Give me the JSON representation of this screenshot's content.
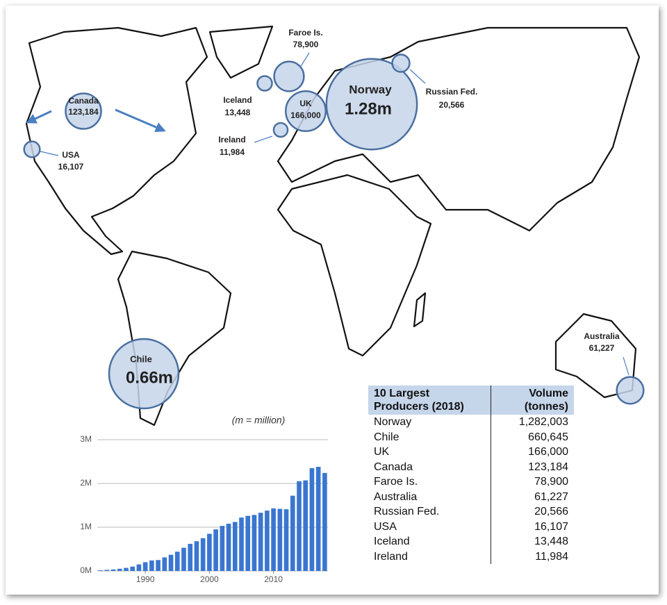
{
  "map": {
    "bubbles": [
      {
        "name": "Norway",
        "label": "1.28m",
        "value": 1282003
      },
      {
        "name": "Chile",
        "label": "0.66m",
        "value": 660645
      },
      {
        "name": "UK",
        "label": "166,000",
        "value": 166000
      },
      {
        "name": "Canada",
        "label": "123,184",
        "value": 123184
      },
      {
        "name": "Faroe Is.",
        "label": "78,900",
        "value": 78900
      },
      {
        "name": "Australia",
        "label": "61,227",
        "value": 61227
      },
      {
        "name": "Russian Fed.",
        "label": "20,566",
        "value": 20566
      },
      {
        "name": "USA",
        "label": "16,107",
        "value": 16107
      },
      {
        "name": "Iceland",
        "label": "13,448",
        "value": 13448
      },
      {
        "name": "Ireland",
        "label": "11,984",
        "value": 11984
      }
    ]
  },
  "note": "(m = million)",
  "chart_data": {
    "type": "bar",
    "x": [
      1983,
      1984,
      1985,
      1986,
      1987,
      1988,
      1989,
      1990,
      1991,
      1992,
      1993,
      1994,
      1995,
      1996,
      1997,
      1998,
      1999,
      2000,
      2001,
      2002,
      2003,
      2004,
      2005,
      2006,
      2007,
      2008,
      2009,
      2010,
      2011,
      2012,
      2013,
      2014,
      2015,
      2016,
      2017,
      2018
    ],
    "values": [
      15000,
      25000,
      35000,
      50000,
      70000,
      100000,
      150000,
      200000,
      240000,
      250000,
      310000,
      370000,
      440000,
      530000,
      620000,
      680000,
      750000,
      850000,
      950000,
      1030000,
      1080000,
      1120000,
      1220000,
      1260000,
      1280000,
      1330000,
      1380000,
      1430000,
      1420000,
      1410000,
      1720000,
      2050000,
      2070000,
      2350000,
      2380000,
      2240000
    ],
    "color": "#3a76d0",
    "xlim": [
      1982.5,
      2018.5
    ],
    "xticks": [
      1990,
      2000,
      2010
    ],
    "ylim": [
      0,
      3000000
    ],
    "yticks": [
      {
        "value": 0,
        "label": "0M"
      },
      {
        "value": 1000000,
        "label": "1M"
      },
      {
        "value": 2000000,
        "label": "2M"
      },
      {
        "value": 3000000,
        "label": "3M"
      }
    ],
    "grid": true
  },
  "table": {
    "header": [
      "10 Largest Producers (2018)",
      "Volume (tonnes)"
    ],
    "rows": [
      [
        "Norway",
        "1,282,003"
      ],
      [
        "Chile",
        "660,645"
      ],
      [
        "UK",
        "166,000"
      ],
      [
        "Canada",
        "123,184"
      ],
      [
        "Faroe Is.",
        "78,900"
      ],
      [
        "Australia",
        "61,227"
      ],
      [
        "Russian Fed.",
        "20,566"
      ],
      [
        "USA",
        "16,107"
      ],
      [
        "Iceland",
        "13,448"
      ],
      [
        "Ireland",
        "11,984"
      ]
    ]
  }
}
